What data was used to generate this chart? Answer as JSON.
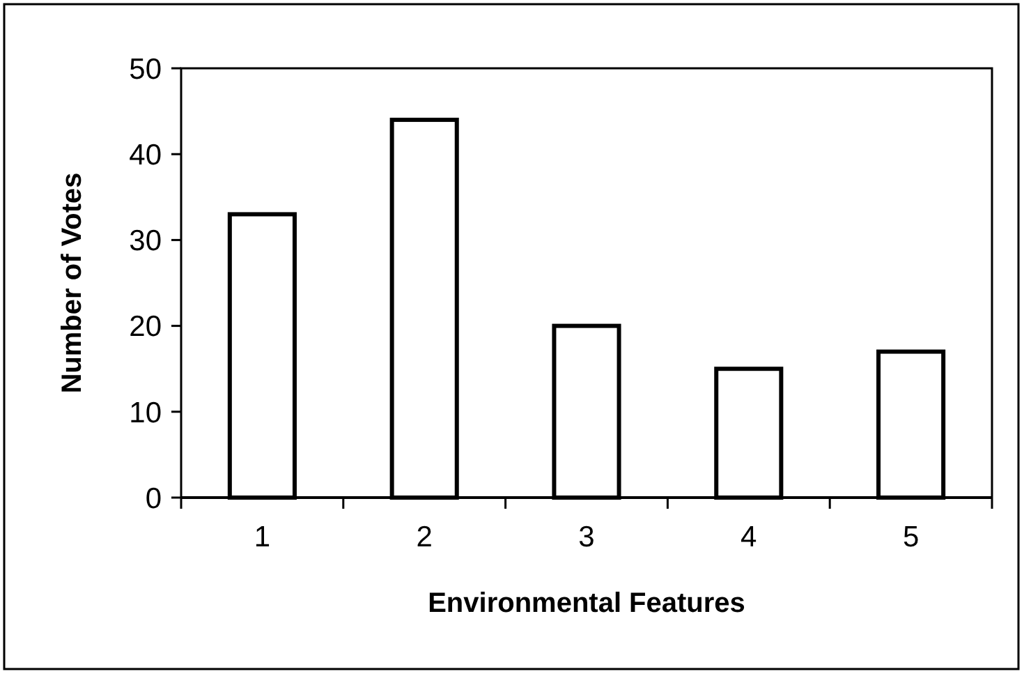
{
  "chart_data": {
    "type": "bar",
    "xlabel": "Environmental Features",
    "ylabel": "Number of Votes",
    "categories": [
      "1",
      "2",
      "3",
      "4",
      "5"
    ],
    "values": [
      33,
      44,
      20,
      15,
      17
    ],
    "color": "#ffffff",
    "ylim": [
      0,
      50
    ],
    "yticks": [
      0,
      10,
      20,
      30,
      40,
      50
    ],
    "grid": false
  }
}
